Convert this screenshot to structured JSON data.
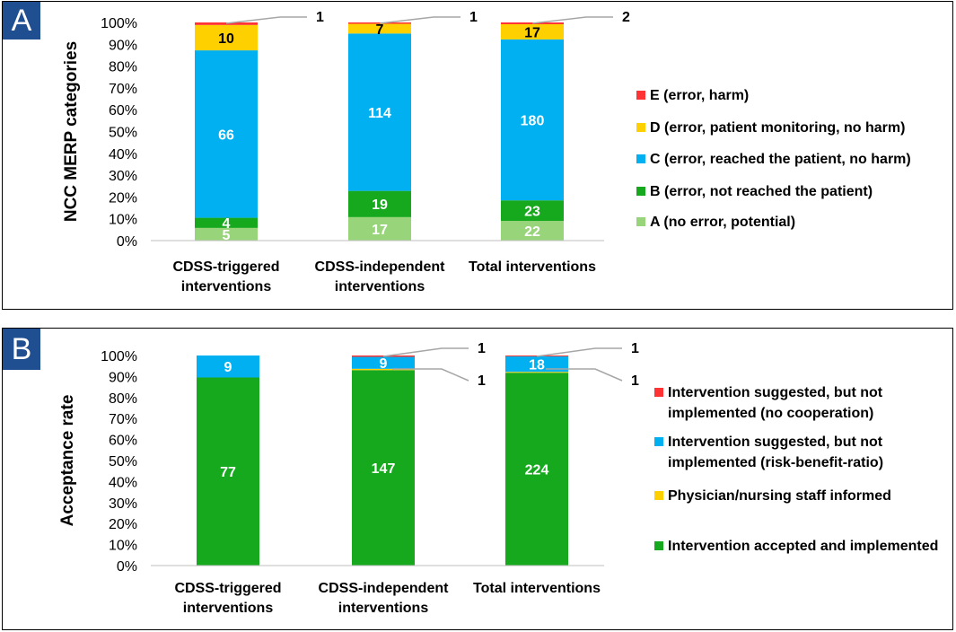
{
  "panels": {
    "a_label": "A",
    "b_label": "B"
  },
  "chart_data": [
    {
      "type": "bar",
      "stacked": true,
      "percent": true,
      "panel": "A",
      "ylabel": "NCC MERP categories",
      "yticks": [
        "0%",
        "10%",
        "20%",
        "30%",
        "40%",
        "50%",
        "60%",
        "70%",
        "80%",
        "90%",
        "100%"
      ],
      "categories": [
        [
          "CDSS-triggered",
          "interventions"
        ],
        [
          "CDSS-independent",
          "interventions"
        ],
        [
          "Total interventions"
        ]
      ],
      "series": [
        {
          "name": "A (no error, potential)",
          "color": "#98d47a",
          "labelColor": "#ffffff",
          "values": [
            5,
            17,
            22
          ]
        },
        {
          "name": "B (error, not reached the patient)",
          "color": "#16a81d",
          "labelColor": "#ffffff",
          "values": [
            4,
            19,
            23
          ]
        },
        {
          "name": "C (error, reached the patient, no harm)",
          "color": "#00b0f0",
          "labelColor": "#ffffff",
          "values": [
            66,
            114,
            180
          ]
        },
        {
          "name": "D (error, patient monitoring, no harm)",
          "color": "#ffd000",
          "labelColor": "#000000",
          "values": [
            10,
            7,
            17
          ]
        },
        {
          "name": "E (error, harm)",
          "color": "#ff3333",
          "labelColor": "#000000",
          "values": [
            1,
            1,
            2
          ]
        }
      ],
      "callouts": [
        "1",
        "1",
        "2"
      ]
    },
    {
      "type": "bar",
      "stacked": true,
      "percent": true,
      "panel": "B",
      "ylabel": "Acceptance rate",
      "yticks": [
        "0%",
        "10%",
        "20%",
        "30%",
        "40%",
        "50%",
        "60%",
        "70%",
        "80%",
        "90%",
        "100%"
      ],
      "categories": [
        [
          "CDSS-triggered",
          "interventions"
        ],
        [
          "CDSS-independent",
          "interventions"
        ],
        [
          "Total interventions"
        ]
      ],
      "series": [
        {
          "name": "Intervention accepted and implemented",
          "color": "#16a81d",
          "labelColor": "#ffffff",
          "values": [
            77,
            147,
            224
          ]
        },
        {
          "name": "Physician/nursing staff informed",
          "color": "#ffd000",
          "labelColor": "#000000",
          "values": [
            0,
            1,
            1
          ]
        },
        {
          "name": "Intervention suggested, but not implemented (risk-benefit-ratio)",
          "legendLines": [
            "Intervention suggested, but not",
            "implemented (risk-benefit-ratio)"
          ],
          "color": "#00b0f0",
          "labelColor": "#ffffff",
          "values": [
            9,
            9,
            18
          ]
        },
        {
          "name": "Intervention suggested, but not implemented (no cooperation)",
          "legendLines": [
            "Intervention suggested, but not",
            "implemented (no cooperation)"
          ],
          "color": "#ff3333",
          "labelColor": "#000000",
          "values": [
            0,
            1,
            1
          ]
        }
      ],
      "callouts_top": [
        "",
        "1",
        "1"
      ],
      "callouts_low": [
        "",
        "1",
        "1"
      ]
    }
  ]
}
